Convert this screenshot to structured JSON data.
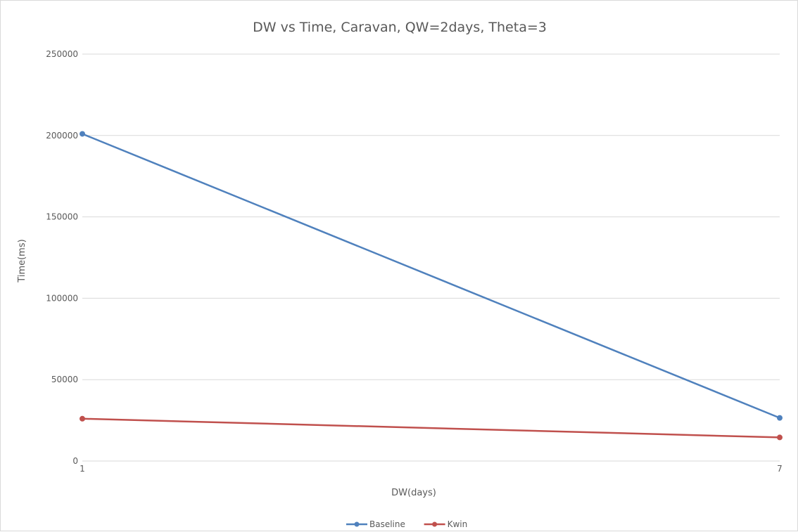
{
  "chart_data": {
    "type": "line",
    "title": "DW vs Time, Caravan, QW=2days, Theta=3",
    "xlabel": "DW(days)",
    "ylabel": "Time(ms)",
    "categories": [
      "1",
      "7"
    ],
    "ylim": [
      0,
      250000
    ],
    "yticks": [
      "0",
      "50000",
      "100000",
      "150000",
      "200000",
      "250000"
    ],
    "grid": true,
    "legend_position": "bottom",
    "series": [
      {
        "name": "Baseline",
        "values": [
          201000,
          26500
        ],
        "color": "#4f81bd"
      },
      {
        "name": "Kwin",
        "values": [
          26000,
          14500
        ],
        "color": "#c0504d"
      }
    ]
  }
}
